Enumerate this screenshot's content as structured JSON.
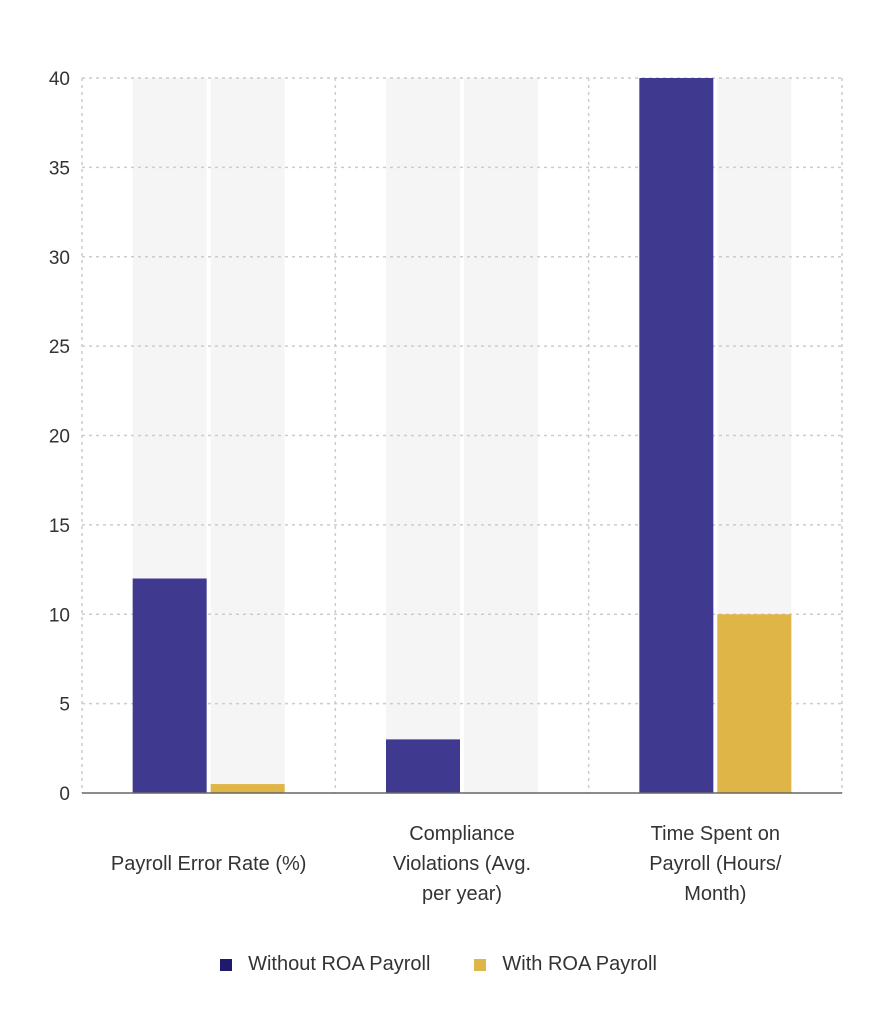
{
  "chart_data": {
    "type": "bar",
    "categories": [
      [
        "Payroll Error Rate (%)"
      ],
      [
        "Compliance",
        "Violations (Avg.",
        "per year)"
      ],
      [
        "Time Spent on",
        "Payroll (Hours/",
        "Month)"
      ]
    ],
    "series": [
      {
        "name": "Without ROA Payroll",
        "color": "#3f3a8f",
        "values": [
          12,
          3,
          40
        ]
      },
      {
        "name": "With ROA Payroll",
        "color": "#e0b547",
        "values": [
          0.5,
          0,
          10
        ]
      }
    ],
    "ylim": [
      0,
      40
    ],
    "yticks": [
      "0",
      "5",
      "10",
      "15",
      "20",
      "25",
      "30",
      "35",
      "40"
    ],
    "grid": true,
    "legend_position": "bottom",
    "legend_swatch_colors": [
      "#1f1a6b",
      "#e0b547"
    ]
  }
}
